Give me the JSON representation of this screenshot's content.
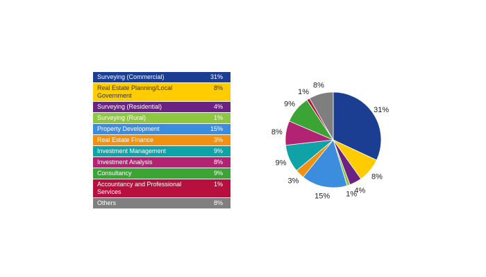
{
  "chart_data": {
    "type": "pie",
    "start_angle_deg": 0,
    "direction": "clockwise",
    "slices": [
      {
        "label": "Surveying (Commercial)",
        "value": 31,
        "display": "31%",
        "color": "#1B3E93",
        "text_color": "#ffffff"
      },
      {
        "label": "Real Estate Planning/Local Government",
        "value": 8,
        "display": "8%",
        "color": "#FFCC00",
        "text_color": "#333333"
      },
      {
        "label": "Surveying (Residential)",
        "value": 4,
        "display": "4%",
        "color": "#6B2283",
        "text_color": "#ffffff"
      },
      {
        "label": "Surveying (Rural)",
        "value": 1,
        "display": "1%",
        "color": "#8DC63F",
        "text_color": "#ffffff"
      },
      {
        "label": "Property Development",
        "value": 15,
        "display": "15%",
        "color": "#3C8DDE",
        "text_color": "#ffffff"
      },
      {
        "label": "Real Estate Finance",
        "value": 3,
        "display": "3%",
        "color": "#F29111",
        "text_color": "#ffffff"
      },
      {
        "label": "Investment Management",
        "value": 9,
        "display": "9%",
        "color": "#0FA3A8",
        "text_color": "#ffffff"
      },
      {
        "label": "Investment Analysis",
        "value": 8,
        "display": "8%",
        "color": "#B32374",
        "text_color": "#ffffff"
      },
      {
        "label": "Consultancy",
        "value": 9,
        "display": "9%",
        "color": "#3AA534",
        "text_color": "#ffffff"
      },
      {
        "label": "Accountancy and Professional Services",
        "value": 1,
        "display": "1%",
        "color": "#B7103E",
        "text_color": "#ffffff"
      },
      {
        "label": "Others",
        "value": 8,
        "display": "8%",
        "color": "#7F7F7F",
        "text_color": "#ffffff"
      }
    ]
  }
}
